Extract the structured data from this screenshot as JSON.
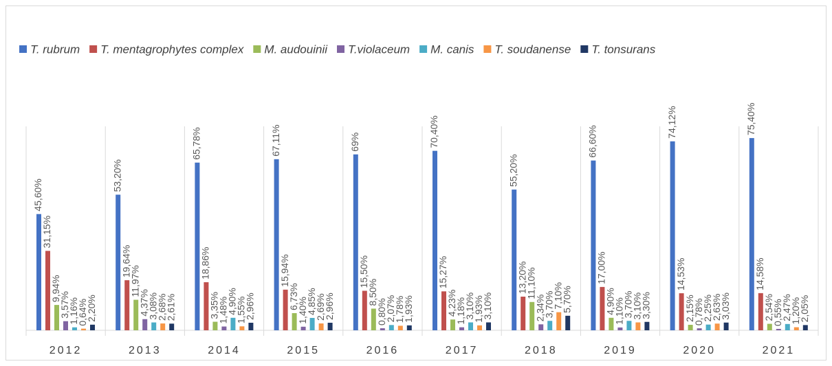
{
  "chart_data": {
    "type": "bar",
    "categories": [
      "2012",
      "2013",
      "2014",
      "2015",
      "2016",
      "2017",
      "2018",
      "2019",
      "2020",
      "2021"
    ],
    "ylim": [
      0,
      80
    ],
    "series": [
      {
        "name": "T. rubrum",
        "color": "#4472c4",
        "values": [
          45.6,
          53.2,
          65.78,
          67.11,
          69,
          70.4,
          55.2,
          66.6,
          74.12,
          75.4
        ],
        "value_labels": [
          "45,60%",
          "53,20%",
          "65,78%",
          "67,11%",
          "69%",
          "70,40%",
          "55,20%",
          "66,60%",
          "74,12%",
          "75,40%"
        ]
      },
      {
        "name": "T. mentagrophytes complex",
        "color": "#c0504d",
        "values": [
          31.15,
          19.64,
          18.86,
          15.94,
          15.5,
          15.27,
          13.2,
          17.0,
          14.53,
          14.58
        ],
        "value_labels": [
          "31,15%",
          "19,64%",
          "18,86%",
          "15,94%",
          "15,50%",
          "15,27%",
          "13,20%",
          "17,00%",
          "14,53%",
          "14,58%"
        ]
      },
      {
        "name": "M. audouinii",
        "color": "#9bbb59",
        "values": [
          9.94,
          11.97,
          3.35,
          6.73,
          8.5,
          4.23,
          11.1,
          4.9,
          2.15,
          2.54
        ],
        "value_labels": [
          "9,94%",
          "11,97%",
          "3,35%",
          "6,73%",
          "8,50%",
          "4,23%",
          "11,10%",
          "4,90%",
          "2,15%",
          "2,54%"
        ]
      },
      {
        "name": "T.violaceum",
        "color": "#8064a2",
        "values": [
          3.57,
          4.37,
          1.48,
          1.4,
          0.8,
          1.18,
          2.34,
          1.1,
          0.78,
          0.55
        ],
        "value_labels": [
          "3,57%",
          "4,37%",
          "1,48%",
          "1,40%",
          "0,80%",
          "1,18%",
          "2,34%",
          "1,10%",
          "0,78%",
          "0,55%"
        ]
      },
      {
        "name": "M. canis",
        "color": "#4bacc6",
        "values": [
          1.16,
          3.08,
          4.9,
          4.85,
          2.07,
          3.1,
          3.7,
          3.7,
          2.25,
          2.47
        ],
        "value_labels": [
          "1,16%",
          "3,08%",
          "4,90%",
          "4,85%",
          "2,07%",
          "3,10%",
          "3,70%",
          "3,70%",
          "2,25%",
          "2,47%"
        ]
      },
      {
        "name": "T. soudanense",
        "color": "#f79646",
        "values": [
          0.64,
          2.68,
          1.55,
          2.69,
          1.78,
          1.93,
          7.1,
          3.1,
          2.63,
          1.2
        ],
        "value_labels": [
          "0,64%",
          "2,68%",
          "1,55%",
          "2,69%",
          "1,78%",
          "1,93%",
          "7,10%",
          "3,10%",
          "2,63%",
          "1,20%"
        ]
      },
      {
        "name": "T. tonsurans",
        "color": "#203864",
        "values": [
          2.2,
          2.61,
          2.96,
          2.96,
          1.93,
          3.1,
          5.7,
          3.3,
          3.03,
          2.05
        ],
        "value_labels": [
          "2,20%",
          "2,61%",
          "2,96%",
          "2,96%",
          "1,93%",
          "3,10%",
          "5,70%",
          "3,30%",
          "3,03%",
          "2,05%"
        ]
      }
    ]
  }
}
